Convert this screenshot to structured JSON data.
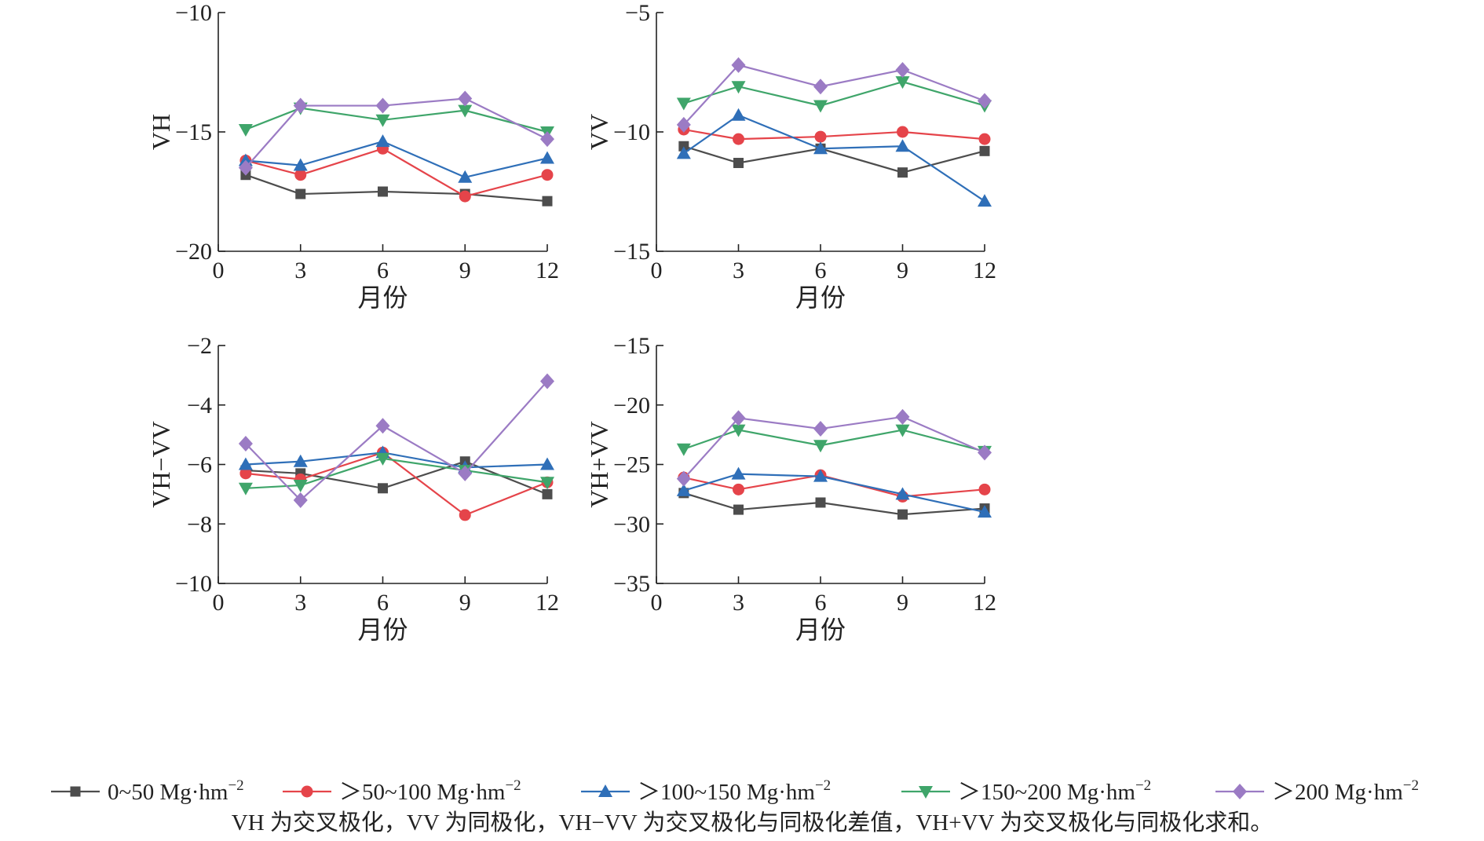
{
  "legend": [
    {
      "name": "0~50 Mg·hm",
      "sup": "−2",
      "color": "#4d4d4d",
      "marker": "square"
    },
    {
      "name": "＞50~100 Mg·hm",
      "sup": "−2",
      "color": "#e5444a",
      "marker": "circle"
    },
    {
      "name": "＞100~150 Mg·hm",
      "sup": "−2",
      "color": "#2f6fb8",
      "marker": "triangle-up"
    },
    {
      "name": "＞150~200 Mg·hm",
      "sup": "−2",
      "color": "#3fa56a",
      "marker": "triangle-down"
    },
    {
      "name": "＞200 Mg·hm",
      "sup": "−2",
      "color": "#9b7bc4",
      "marker": "diamond"
    }
  ],
  "caption": "VH 为交叉极化，VV 为同极化，VH−VV 为交叉极化与同极化差值，VH+VV 为交叉极化与同极化求和。",
  "chart_data": [
    {
      "type": "line",
      "xlabel": "月份",
      "ylabel": "VH",
      "xlim": [
        0,
        12
      ],
      "ylim": [
        -20,
        -10
      ],
      "xticks": [
        "0",
        "3",
        "6",
        "9",
        "12"
      ],
      "yticks": [
        "−20",
        "−15",
        "−10"
      ],
      "ytick_values": [
        -20,
        -15,
        -10
      ],
      "x": [
        1,
        3,
        6,
        9,
        12
      ],
      "series": [
        {
          "values": [
            -16.8,
            -17.6,
            -17.5,
            -17.6,
            -17.9
          ]
        },
        {
          "values": [
            -16.2,
            -16.8,
            -15.7,
            -17.7,
            -16.8
          ]
        },
        {
          "values": [
            -16.2,
            -16.4,
            -15.4,
            -16.9,
            -16.1
          ]
        },
        {
          "values": [
            -14.9,
            -14.0,
            -14.5,
            -14.1,
            -15.0
          ]
        },
        {
          "values": [
            -16.5,
            -13.9,
            -13.9,
            -13.6,
            -15.3
          ]
        }
      ]
    },
    {
      "type": "line",
      "xlabel": "月份",
      "ylabel": "VV",
      "xlim": [
        0,
        12
      ],
      "ylim": [
        -15,
        -5
      ],
      "xticks": [
        "0",
        "3",
        "6",
        "9",
        "12"
      ],
      "yticks": [
        "−15",
        "−10",
        "−5"
      ],
      "ytick_values": [
        -15,
        -10,
        -5
      ],
      "x": [
        1,
        3,
        6,
        9,
        12
      ],
      "series": [
        {
          "values": [
            -10.6,
            -11.3,
            -10.7,
            -11.7,
            -10.8
          ]
        },
        {
          "values": [
            -9.9,
            -10.3,
            -10.2,
            -10.0,
            -10.3
          ]
        },
        {
          "values": [
            -10.9,
            -9.3,
            -10.7,
            -10.6,
            -12.9
          ]
        },
        {
          "values": [
            -8.8,
            -8.1,
            -8.9,
            -7.9,
            -8.9
          ]
        },
        {
          "values": [
            -9.7,
            -7.2,
            -8.1,
            -7.4,
            -8.7
          ]
        }
      ]
    },
    {
      "type": "line",
      "xlabel": "月份",
      "ylabel": "VH−VV",
      "xlim": [
        0,
        12
      ],
      "ylim": [
        -10,
        -2
      ],
      "xticks": [
        "0",
        "3",
        "6",
        "9",
        "12"
      ],
      "yticks": [
        "−10",
        "−8",
        "−6",
        "−4",
        "−2"
      ],
      "ytick_values": [
        -10,
        -8,
        -6,
        -4,
        -2
      ],
      "x": [
        1,
        3,
        6,
        9,
        12
      ],
      "series": [
        {
          "values": [
            -6.2,
            -6.3,
            -6.8,
            -5.9,
            -7.0
          ]
        },
        {
          "values": [
            -6.3,
            -6.5,
            -5.6,
            -7.7,
            -6.6
          ]
        },
        {
          "values": [
            -6.0,
            -5.9,
            -5.6,
            -6.1,
            -6.0
          ]
        },
        {
          "values": [
            -6.8,
            -6.7,
            -5.8,
            -6.2,
            -6.6
          ]
        },
        {
          "values": [
            -5.3,
            -7.2,
            -4.7,
            -6.3,
            -3.2
          ]
        }
      ]
    },
    {
      "type": "line",
      "xlabel": "月份",
      "ylabel": "VH+VV",
      "xlim": [
        0,
        12
      ],
      "ylim": [
        -35,
        -15
      ],
      "xticks": [
        "0",
        "3",
        "6",
        "9",
        "12"
      ],
      "yticks": [
        "−35",
        "−30",
        "−25",
        "−20",
        "−15"
      ],
      "ytick_values": [
        -35,
        -30,
        -25,
        -20,
        -15
      ],
      "x": [
        1,
        3,
        6,
        9,
        12
      ],
      "series": [
        {
          "values": [
            -27.4,
            -28.8,
            -28.2,
            -29.2,
            -28.7
          ]
        },
        {
          "values": [
            -26.1,
            -27.1,
            -25.9,
            -27.7,
            -27.1
          ]
        },
        {
          "values": [
            -27.2,
            -25.8,
            -26.0,
            -27.5,
            -29.0
          ]
        },
        {
          "values": [
            -23.7,
            -22.1,
            -23.4,
            -22.1,
            -23.9
          ]
        },
        {
          "values": [
            -26.2,
            -21.1,
            -22.0,
            -21.0,
            -24.0
          ]
        }
      ]
    }
  ]
}
